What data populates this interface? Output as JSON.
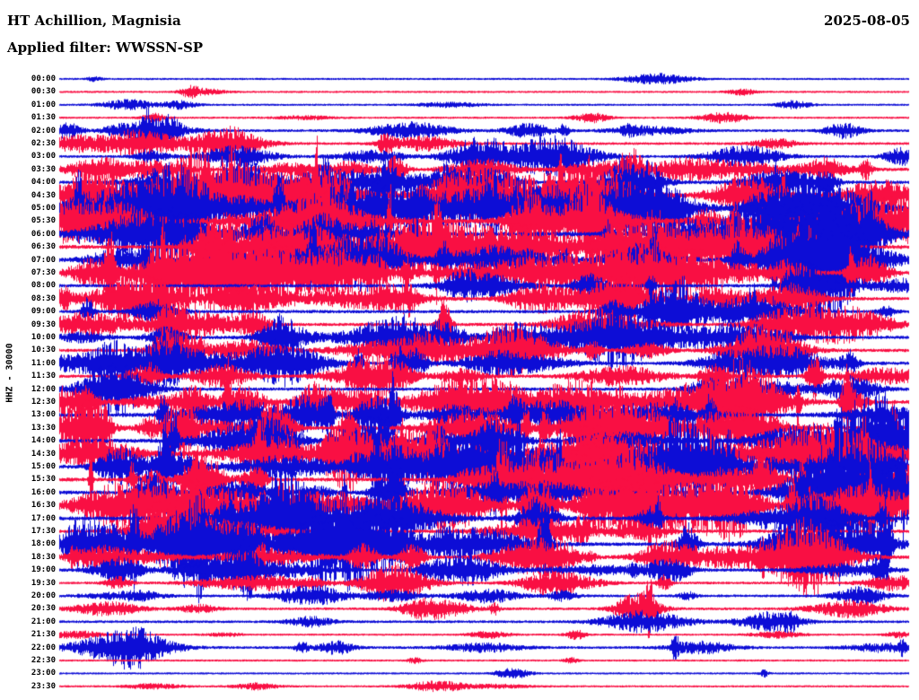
{
  "header": {
    "station": "HT Achillion, Magnisia",
    "date": "2025-08-05",
    "filter_label": "Applied filter: WWSSN-SP"
  },
  "axis": {
    "left_label": "HHZ - 30000"
  },
  "chart_data": {
    "type": "line",
    "subtype": "helicorder-seismogram",
    "station": "HT Achillion, Magnisia",
    "date": "2025-08-05",
    "filter": "WWSSN-SP",
    "channel_scale_label": "HHZ - 30000",
    "minutes_per_row": 30,
    "colors": {
      "blue": "#0d0dd6",
      "red": "#f90f43"
    },
    "activity_scale": "qualitative trace amplitude 0 (flat) to 5 (extreme), estimated from the plot",
    "rows": [
      {
        "time": "00:00",
        "color": "blue",
        "activity": 1
      },
      {
        "time": "00:30",
        "color": "red",
        "activity": 1
      },
      {
        "time": "01:00",
        "color": "blue",
        "activity": 1
      },
      {
        "time": "01:30",
        "color": "red",
        "activity": 1
      },
      {
        "time": "02:00",
        "color": "blue",
        "activity": 2
      },
      {
        "time": "02:30",
        "color": "red",
        "activity": 2
      },
      {
        "time": "03:00",
        "color": "blue",
        "activity": 2
      },
      {
        "time": "03:30",
        "color": "red",
        "activity": 3
      },
      {
        "time": "04:00",
        "color": "blue",
        "activity": 3
      },
      {
        "time": "04:30",
        "color": "red",
        "activity": 4
      },
      {
        "time": "05:00",
        "color": "blue",
        "activity": 4
      },
      {
        "time": "05:30",
        "color": "red",
        "activity": 5
      },
      {
        "time": "06:00",
        "color": "blue",
        "activity": 5
      },
      {
        "time": "06:30",
        "color": "red",
        "activity": 4
      },
      {
        "time": "07:00",
        "color": "blue",
        "activity": 4
      },
      {
        "time": "07:30",
        "color": "red",
        "activity": 4
      },
      {
        "time": "08:00",
        "color": "blue",
        "activity": 3
      },
      {
        "time": "08:30",
        "color": "red",
        "activity": 3
      },
      {
        "time": "09:00",
        "color": "blue",
        "activity": 3
      },
      {
        "time": "09:30",
        "color": "red",
        "activity": 3
      },
      {
        "time": "10:00",
        "color": "blue",
        "activity": 3
      },
      {
        "time": "10:30",
        "color": "red",
        "activity": 3
      },
      {
        "time": "11:00",
        "color": "blue",
        "activity": 3
      },
      {
        "time": "11:30",
        "color": "red",
        "activity": 3
      },
      {
        "time": "12:00",
        "color": "blue",
        "activity": 3
      },
      {
        "time": "12:30",
        "color": "red",
        "activity": 4
      },
      {
        "time": "13:00",
        "color": "blue",
        "activity": 4
      },
      {
        "time": "13:30",
        "color": "red",
        "activity": 4
      },
      {
        "time": "14:00",
        "color": "blue",
        "activity": 4
      },
      {
        "time": "14:30",
        "color": "red",
        "activity": 4
      },
      {
        "time": "15:00",
        "color": "blue",
        "activity": 4
      },
      {
        "time": "15:30",
        "color": "red",
        "activity": 4
      },
      {
        "time": "16:00",
        "color": "blue",
        "activity": 4
      },
      {
        "time": "16:30",
        "color": "red",
        "activity": 4
      },
      {
        "time": "17:00",
        "color": "blue",
        "activity": 4
      },
      {
        "time": "17:30",
        "color": "red",
        "activity": 3
      },
      {
        "time": "18:00",
        "color": "blue",
        "activity": 4
      },
      {
        "time": "18:30",
        "color": "red",
        "activity": 3
      },
      {
        "time": "19:00",
        "color": "blue",
        "activity": 3
      },
      {
        "time": "19:30",
        "color": "red",
        "activity": 2
      },
      {
        "time": "20:00",
        "color": "blue",
        "activity": 2
      },
      {
        "time": "20:30",
        "color": "red",
        "activity": 2
      },
      {
        "time": "21:00",
        "color": "blue",
        "activity": 2
      },
      {
        "time": "21:30",
        "color": "red",
        "activity": 1
      },
      {
        "time": "22:00",
        "color": "blue",
        "activity": 2
      },
      {
        "time": "22:30",
        "color": "red",
        "activity": 1
      },
      {
        "time": "23:00",
        "color": "blue",
        "activity": 1
      },
      {
        "time": "23:30",
        "color": "red",
        "activity": 1
      }
    ]
  }
}
